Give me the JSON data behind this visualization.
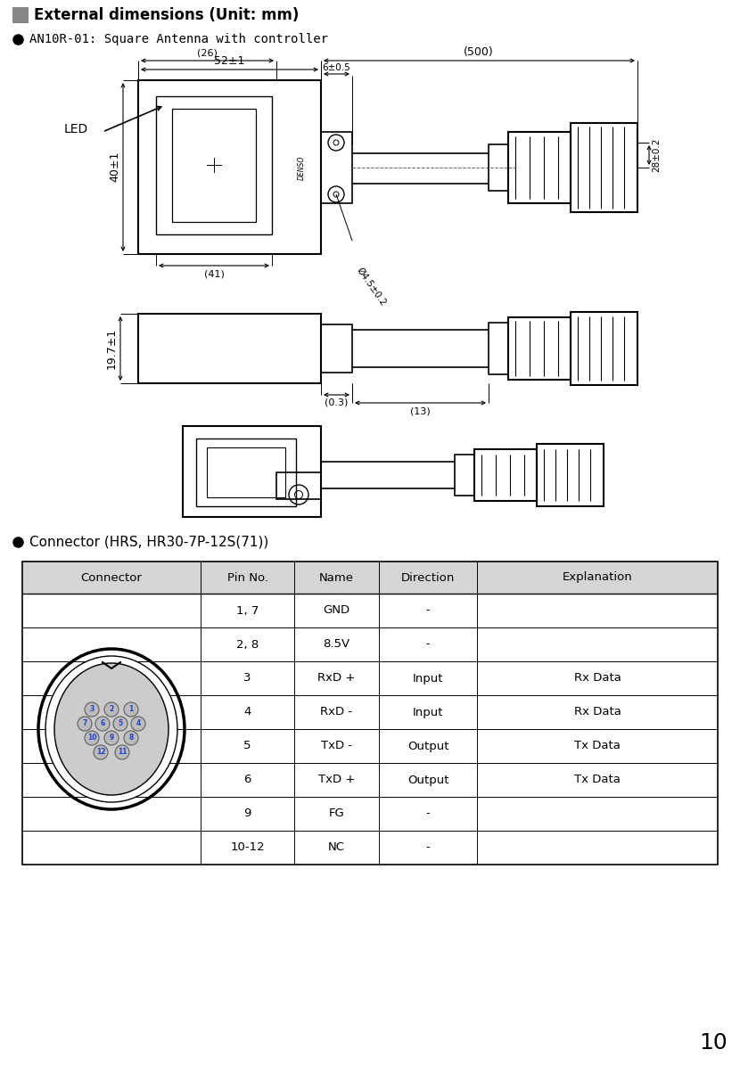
{
  "title": "External dimensions (Unit: mm)",
  "subtitle": "AN10R-01: Square Antenna with controller",
  "connector_subtitle": "Connector (HRS, HR30-7P-12S(71))",
  "page_number": "10",
  "background_color": "#ffffff",
  "table_header": [
    "Connector",
    "Pin No.",
    "Name",
    "Direction",
    "Explanation"
  ],
  "table_rows": [
    [
      "",
      "1, 7",
      "GND",
      "-",
      ""
    ],
    [
      "",
      "2, 8",
      "8.5V",
      "-",
      ""
    ],
    [
      "",
      "3",
      "RxD +",
      "Input",
      "Rx Data"
    ],
    [
      "",
      "4",
      "RxD -",
      "Input",
      "Rx Data"
    ],
    [
      "",
      "5",
      "TxD -",
      "Output",
      "Tx Data"
    ],
    [
      "",
      "6",
      "TxD +",
      "Output",
      "Tx Data"
    ],
    [
      "",
      "9",
      "FG",
      "-",
      ""
    ],
    [
      "",
      "10-12",
      "NC",
      "-",
      ""
    ]
  ],
  "dim_52": "52±1",
  "dim_500": "(500)",
  "dim_26": "(26)",
  "dim_6": "6±0.5",
  "dim_28": "28±0.2",
  "dim_40": "40±1",
  "dim_41": "(41)",
  "dim_45": "Ø4.5±0.2",
  "dim_197": "19.7±1",
  "dim_03": "(0.3)",
  "dim_13": "(13)",
  "led_label": "LED",
  "denso_label": "DENSO"
}
